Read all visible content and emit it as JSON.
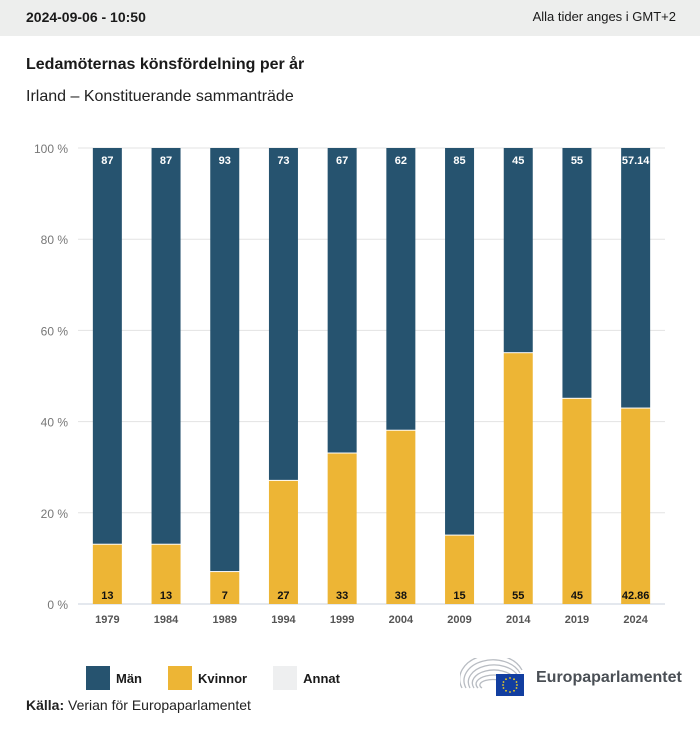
{
  "header": {
    "timestamp": "2024-09-06 - 10:50",
    "timezone_note": "Alla tider anges i GMT+2"
  },
  "colors": {
    "men": "#26536f",
    "women": "#edb535",
    "other": "#eeeff0",
    "grid": "#e3e3e3",
    "axis": "#c9d0dc"
  },
  "chart_data": {
    "type": "bar",
    "stacked": true,
    "title": "Ledamöternas könsfördelning per år",
    "subtitle": "Irland – Konstituerande sammanträde",
    "xlabel": "",
    "ylabel": "",
    "ylim": [
      0,
      100
    ],
    "yticks": [
      0,
      20,
      40,
      60,
      80,
      100
    ],
    "ytick_labels": [
      "0 %",
      "20 %",
      "40 %",
      "60 %",
      "80 %",
      "100 %"
    ],
    "grid": true,
    "categories": [
      "1979",
      "1984",
      "1989",
      "1994",
      "1999",
      "2004",
      "2009",
      "2014",
      "2019",
      "2024"
    ],
    "series": [
      {
        "name": "Kvinnor",
        "values": [
          13,
          13,
          7,
          27,
          33,
          38,
          15,
          55,
          45,
          42.86
        ],
        "labels": [
          "13",
          "13",
          "7",
          "27",
          "33",
          "38",
          "15",
          "55",
          "45",
          "42.86"
        ]
      },
      {
        "name": "Män",
        "values": [
          87,
          87,
          93,
          73,
          67,
          62,
          85,
          45,
          55,
          57.14
        ],
        "labels": [
          "87",
          "87",
          "93",
          "73",
          "67",
          "62",
          "85",
          "45",
          "55",
          "57.14"
        ]
      },
      {
        "name": "Annat",
        "values": [
          0,
          0,
          0,
          0,
          0,
          0,
          0,
          0,
          0,
          0
        ]
      }
    ],
    "legend": {
      "position": "bottom-left",
      "entries": [
        "Män",
        "Kvinnor",
        "Annat"
      ]
    }
  },
  "legend": {
    "items": [
      {
        "label": "Män",
        "color": "#26536f"
      },
      {
        "label": "Kvinnor",
        "color": "#edb535"
      },
      {
        "label": "Annat",
        "color": "#eeeff0"
      }
    ]
  },
  "source": {
    "label": "Källa:",
    "text": " Verian för Europaparlamentet"
  },
  "logo": {
    "name": "Europaparlamentet",
    "icon": "european-parliament-hemicycle-eu-flag-icon"
  }
}
